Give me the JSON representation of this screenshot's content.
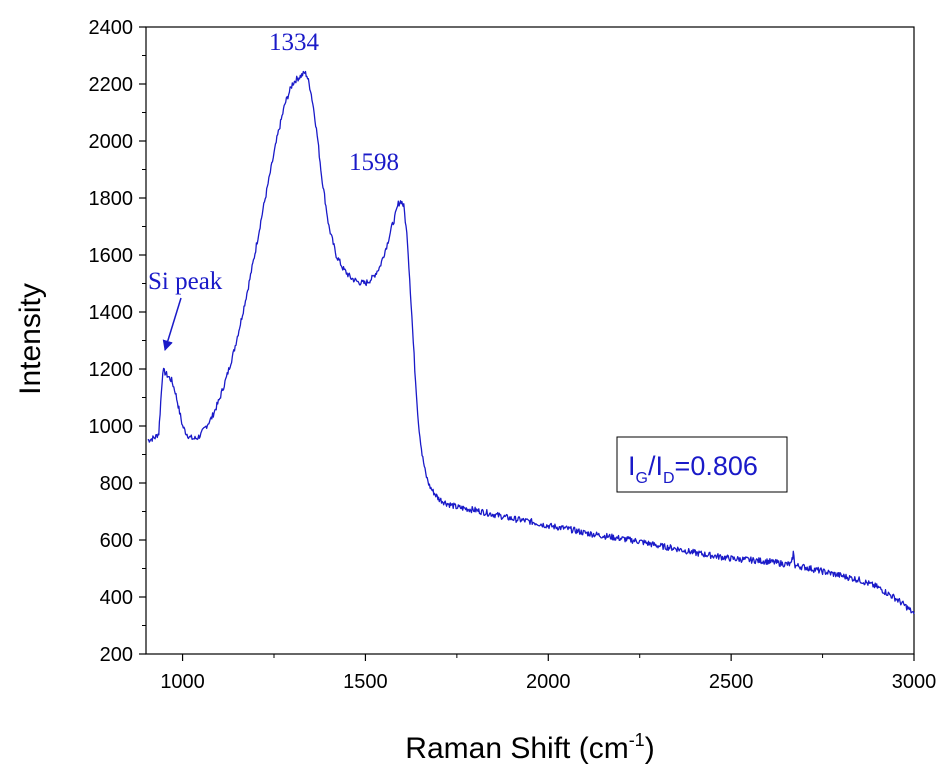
{
  "chart_data": {
    "type": "line",
    "title": "",
    "xlabel": "Raman Shift (cm",
    "xlabel_sup": "-1",
    "xlabel_tail": ")",
    "ylabel": "Intensity",
    "xlim": [
      900,
      3000
    ],
    "ylim": [
      200,
      2400
    ],
    "x_ticks": [
      1000,
      1500,
      2000,
      2500,
      3000
    ],
    "x_tick_labels": [
      "1000",
      "1500",
      "2000",
      "2500",
      "3000"
    ],
    "y_ticks": [
      200,
      400,
      600,
      800,
      1000,
      1200,
      1400,
      1600,
      1800,
      2000,
      2200,
      2400
    ],
    "y_tick_labels": [
      "200",
      "400",
      "600",
      "800",
      "1000",
      "1200",
      "1400",
      "1600",
      "1800",
      "2000",
      "2200",
      "2400"
    ],
    "grid": false,
    "legend": "none",
    "line_color": "#1a1ac8",
    "series": [
      {
        "x": [
          905,
          915,
          925,
          935,
          942,
          946,
          950,
          960,
          970,
          980,
          990,
          1000,
          1010,
          1020,
          1030,
          1040,
          1050,
          1060,
          1080,
          1100,
          1120,
          1140,
          1160,
          1180,
          1200,
          1220,
          1240,
          1260,
          1280,
          1300,
          1310,
          1320,
          1330,
          1334,
          1340,
          1350,
          1360,
          1370,
          1380,
          1400,
          1420,
          1440,
          1460,
          1480,
          1500,
          1520,
          1540,
          1560,
          1570,
          1580,
          1590,
          1598,
          1605,
          1615,
          1625,
          1635,
          1645,
          1655,
          1665,
          1675,
          1685,
          1700,
          1720,
          1750,
          1800,
          1850,
          1900,
          1950,
          2000,
          2050,
          2100,
          2150,
          2200,
          2250,
          2300,
          2350,
          2400,
          2450,
          2500,
          2550,
          2600,
          2650,
          2665,
          2670,
          2675,
          2700,
          2750,
          2800,
          2850,
          2900,
          2950,
          2980,
          3000
        ],
        "y": [
          950,
          955,
          960,
          975,
          1120,
          1195,
          1190,
          1175,
          1160,
          1120,
          1060,
          1000,
          975,
          960,
          955,
          958,
          970,
          990,
          1030,
          1090,
          1170,
          1260,
          1370,
          1490,
          1620,
          1760,
          1890,
          2020,
          2130,
          2200,
          2215,
          2225,
          2235,
          2240,
          2230,
          2180,
          2100,
          2000,
          1880,
          1700,
          1600,
          1550,
          1520,
          1505,
          1500,
          1520,
          1560,
          1640,
          1690,
          1730,
          1780,
          1790,
          1770,
          1650,
          1430,
          1200,
          1010,
          900,
          830,
          790,
          770,
          745,
          730,
          715,
          705,
          690,
          675,
          665,
          650,
          640,
          625,
          615,
          605,
          595,
          580,
          570,
          555,
          545,
          535,
          530,
          525,
          515,
          515,
          555,
          510,
          505,
          490,
          475,
          460,
          435,
          395,
          365,
          340
        ]
      }
    ],
    "annotations": {
      "peak_1334": "1334",
      "peak_1598": "1598",
      "si_peak": "Si peak",
      "ratio_I": "I",
      "ratio_G": "G",
      "ratio_slash": "/I",
      "ratio_D": "D",
      "ratio_value": "=0.806"
    }
  }
}
